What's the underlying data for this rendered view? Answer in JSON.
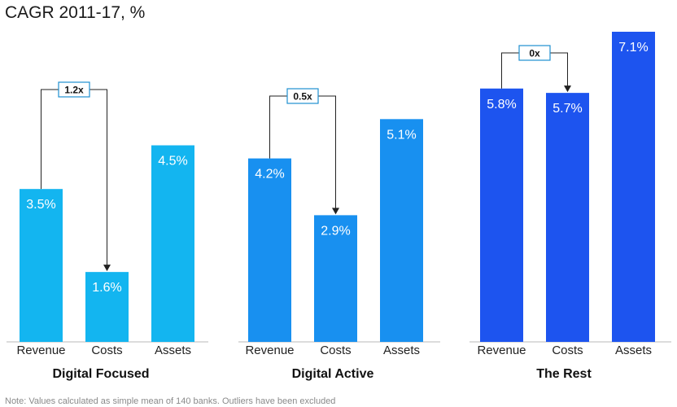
{
  "title": "CAGR 2011-17, %",
  "footnote": "Note: Values calculated as simple mean of 140 banks. Outliers have been excluded",
  "chart_data": {
    "type": "bar",
    "title": "CAGR 2011-17, %",
    "categories": [
      "Revenue",
      "Costs",
      "Assets"
    ],
    "ylim": [
      0,
      7.1
    ],
    "grid": false,
    "legend": "none",
    "groups": [
      {
        "name": "Digital Focused",
        "color": "#13b5f0",
        "values": [
          3.5,
          1.6,
          4.5
        ],
        "labels": [
          "3.5%",
          "1.6%",
          "4.5%"
        ],
        "ratio": "1.2x"
      },
      {
        "name": "Digital Active",
        "color": "#1890f0",
        "values": [
          4.2,
          2.9,
          5.1
        ],
        "labels": [
          "4.2%",
          "2.9%",
          "5.1%"
        ],
        "ratio": "0.5x"
      },
      {
        "name": "The Rest",
        "color": "#1d54ef",
        "values": [
          5.8,
          5.7,
          7.1
        ],
        "labels": [
          "5.8%",
          "5.7%",
          "7.1%"
        ],
        "ratio": "0x"
      }
    ]
  }
}
